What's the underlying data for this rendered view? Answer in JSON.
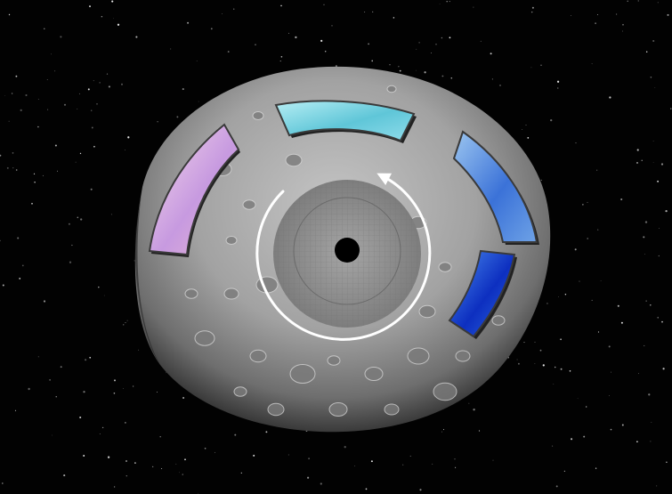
{
  "scene": {
    "background_color": "#020202",
    "asteroid_color": "#9e9e9e",
    "hub_color": "#8a8a8a",
    "hole_color": "#000000",
    "rotation_arrow_color": "#ffffff",
    "rotation_direction": "clockwise"
  },
  "panels": [
    {
      "name": "panel-pink-left",
      "colors": [
        "#f6d8ea",
        "#c79ae0",
        "#e8b6d4"
      ]
    },
    {
      "name": "panel-cyan-top",
      "colors": [
        "#b7eef4",
        "#5fc6d8",
        "#8fdceb"
      ]
    },
    {
      "name": "panel-blue-right-upper",
      "colors": [
        "#9cc6f0",
        "#3b72d8",
        "#6ea2e6"
      ]
    },
    {
      "name": "panel-blue-right-lower",
      "colors": [
        "#4d8ef0",
        "#0d2fc0",
        "#2f6ae0"
      ]
    }
  ]
}
